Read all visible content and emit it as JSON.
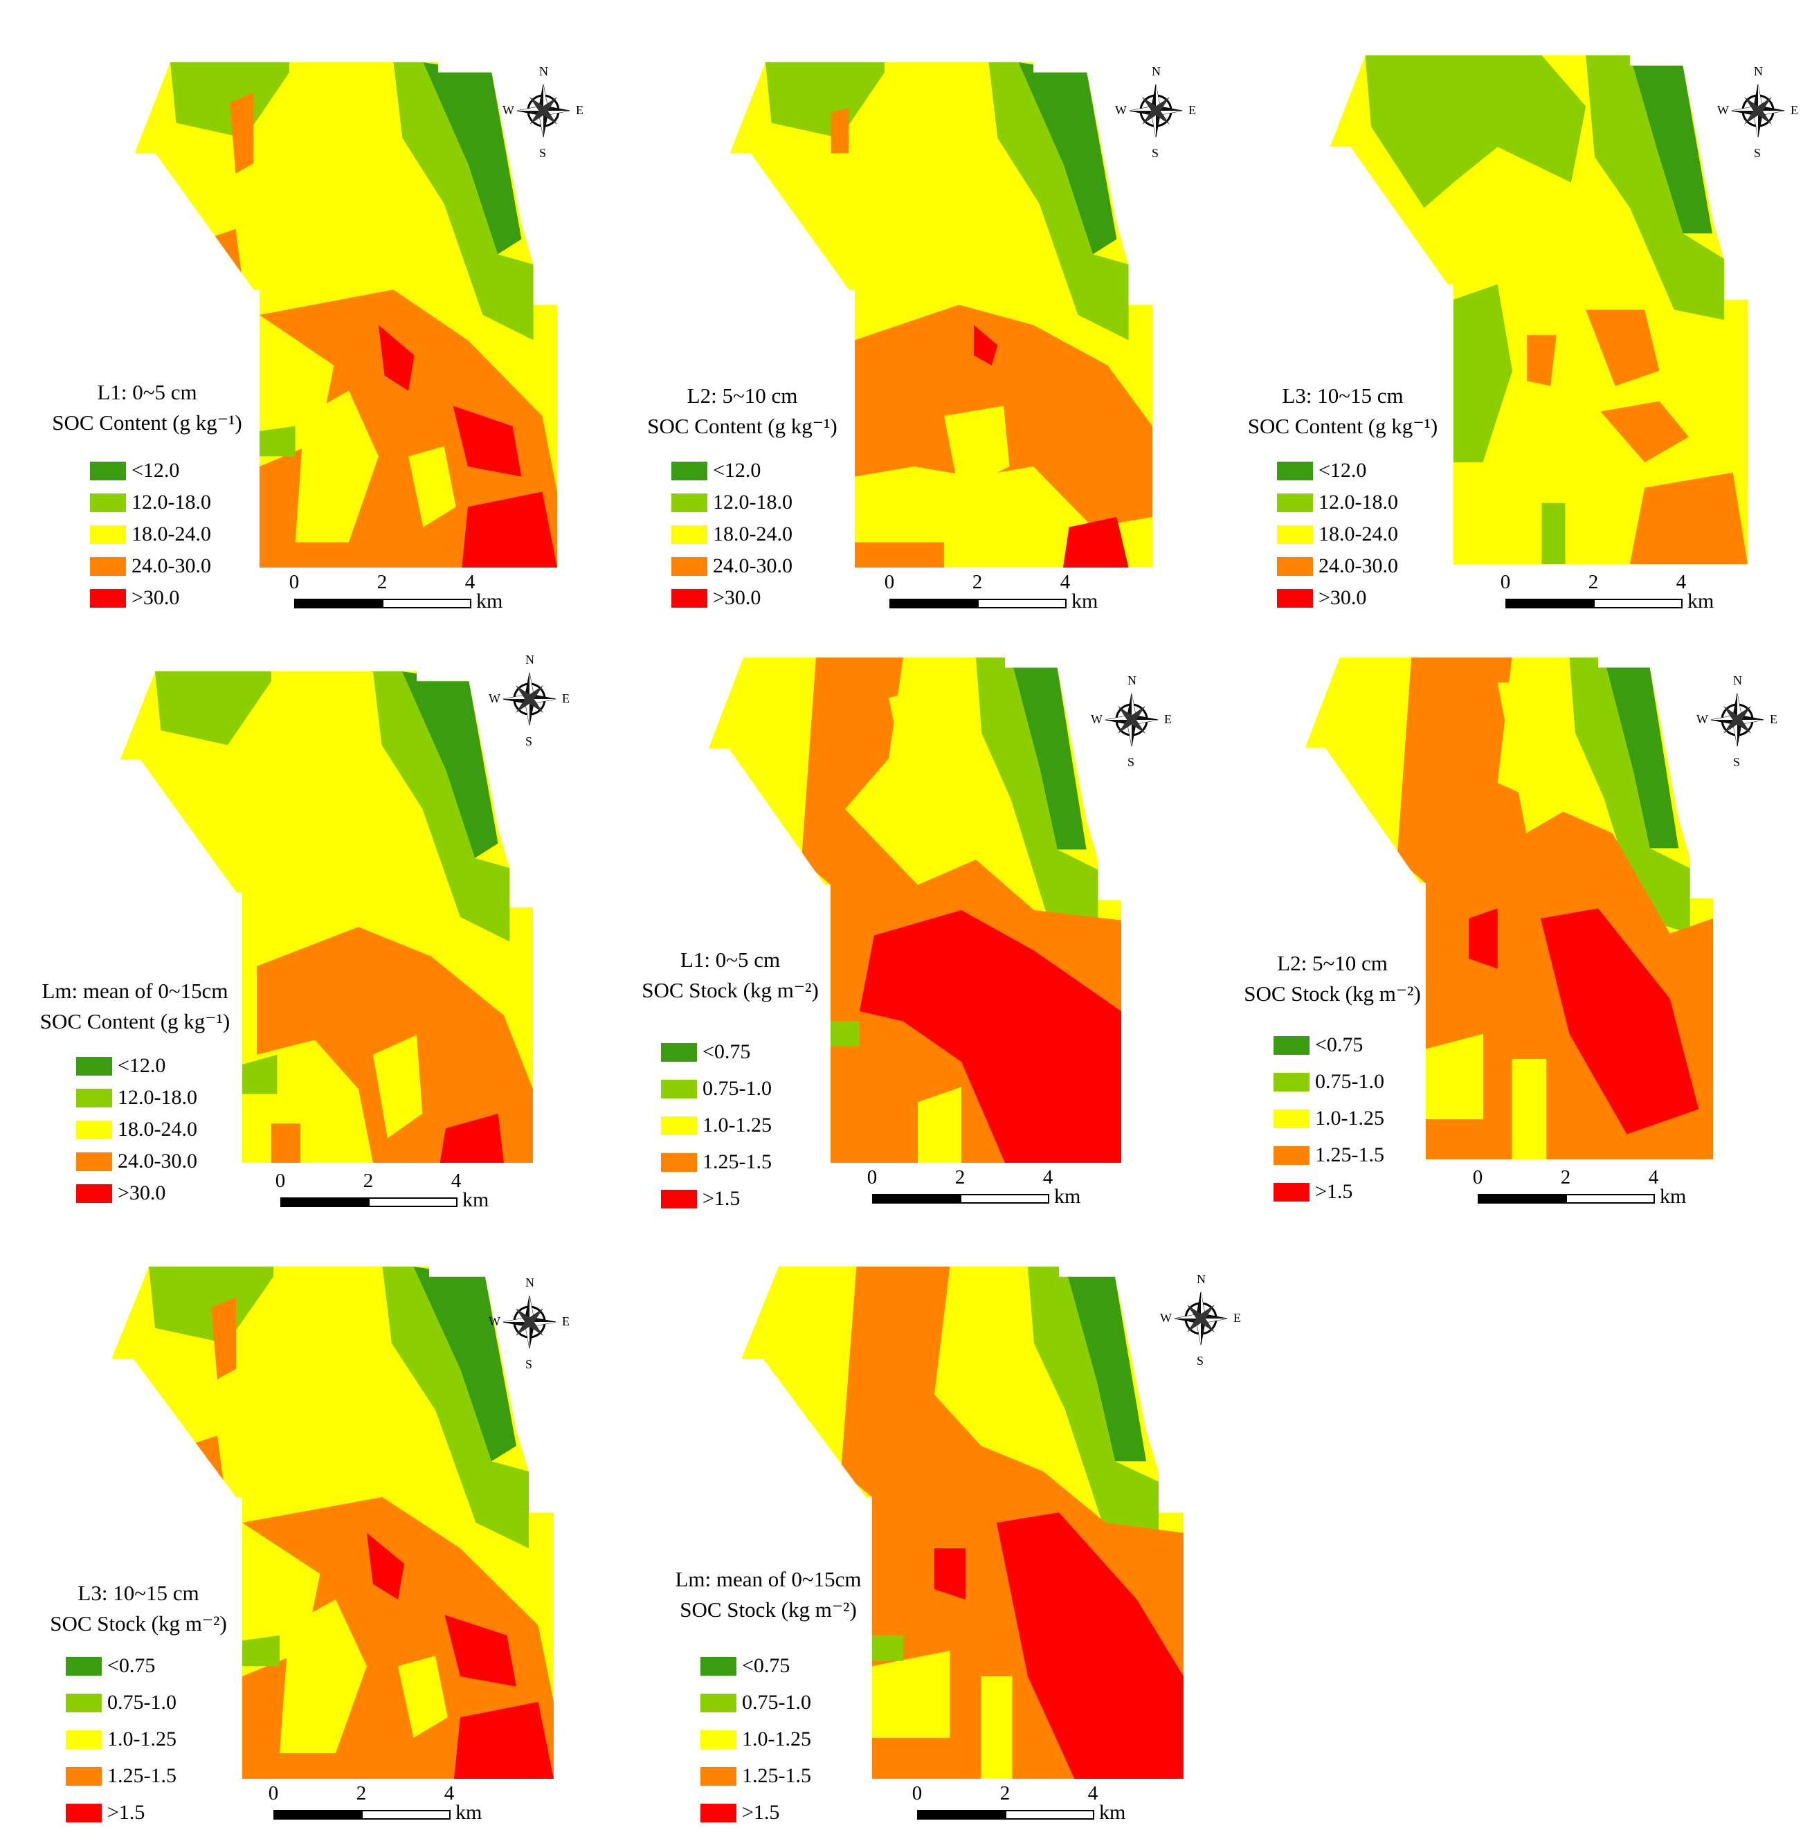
{
  "colors": {
    "dark_green": "#3a9c0f",
    "light_green": "#8ccf00",
    "yellow": "#ffff00",
    "orange": "#ff8200",
    "red": "#ff0000"
  },
  "compass": {
    "n": "N",
    "s": "S",
    "e": "E",
    "w": "W"
  },
  "scale": {
    "ticks": [
      "0",
      "2",
      "4"
    ],
    "unit": "km"
  },
  "content_legend": [
    "<12.0",
    "12.0-18.0",
    "18.0-24.0",
    "24.0-30.0",
    ">30.0"
  ],
  "stock_legend": [
    "<0.75",
    "0.75-1.0",
    "1.0-1.25",
    "1.25-1.5",
    ">1.5"
  ],
  "panels": [
    {
      "id": "c-l1",
      "title_line1": "L1: 0~5 cm",
      "title_line2": "SOC Content (g kg⁻¹)",
      "legend": "content",
      "variant": "content_l1"
    },
    {
      "id": "c-l2",
      "title_line1": "L2: 5~10 cm",
      "title_line2": "SOC Content (g kg⁻¹)",
      "legend": "content",
      "variant": "content_l2"
    },
    {
      "id": "c-l3",
      "title_line1": "L3: 10~15 cm",
      "title_line2": "SOC Content (g kg⁻¹)",
      "legend": "content",
      "variant": "content_l3"
    },
    {
      "id": "c-lm",
      "title_line1": "Lm: mean of 0~15cm",
      "title_line2": "SOC Content (g kg⁻¹)",
      "legend": "content",
      "variant": "content_lm"
    },
    {
      "id": "s-l1",
      "title_line1": "L1: 0~5 cm",
      "title_line2": "SOC Stock (kg m⁻²)",
      "legend": "stock",
      "variant": "stock_l1"
    },
    {
      "id": "s-l2",
      "title_line1": "L2: 5~10 cm",
      "title_line2": "SOC Stock (kg m⁻²)",
      "legend": "stock",
      "variant": "stock_l2"
    },
    {
      "id": "s-l3",
      "title_line1": "L3: 10~15 cm",
      "title_line2": "SOC Stock (kg m⁻²)",
      "legend": "stock",
      "variant": "stock_l3"
    },
    {
      "id": "s-lm",
      "title_line1": "Lm: mean of 0~15cm",
      "title_line2": "SOC Stock (kg m⁻²)",
      "legend": "stock",
      "variant": "stock_lm"
    }
  ]
}
